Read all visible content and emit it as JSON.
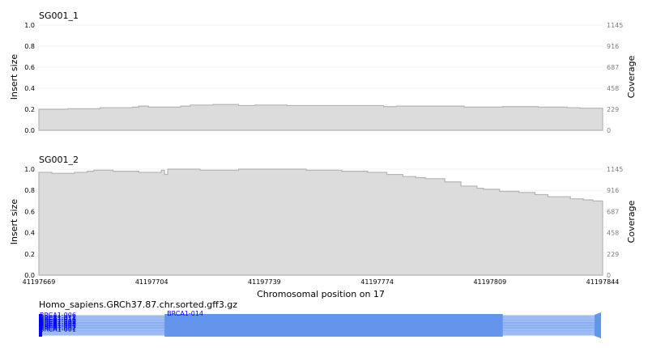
{
  "chart_data": [
    {
      "type": "area",
      "title": "SG001_1",
      "ylabel": "Insert size",
      "y2label": "Coverage",
      "ylim": [
        0,
        1
      ],
      "yticks": [
        "0.0",
        "0.2",
        "0.4",
        "0.6",
        "0.8",
        "1.0"
      ],
      "y2ticks": [
        "0",
        "229",
        "458",
        "687",
        "916",
        "1145"
      ],
      "xlim": [
        41197669,
        41197844
      ],
      "x": [
        41197669,
        41197678,
        41197688,
        41197698,
        41197700,
        41197703,
        41197713,
        41197716,
        41197723,
        41197731,
        41197736,
        41197743,
        41197746,
        41197753,
        41197763,
        41197776,
        41197780,
        41197792,
        41197801,
        41197813,
        41197824,
        41197833,
        41197837,
        41197844
      ],
      "values": [
        0.2,
        0.205,
        0.215,
        0.22,
        0.23,
        0.22,
        0.23,
        0.24,
        0.245,
        0.235,
        0.24,
        0.24,
        0.235,
        0.235,
        0.235,
        0.225,
        0.23,
        0.23,
        0.22,
        0.225,
        0.22,
        0.215,
        0.21,
        0.2
      ],
      "fill": "#dcdcdc",
      "line": "#b4b4b4"
    },
    {
      "type": "area",
      "title": "SG001_2",
      "ylabel": "Insert size",
      "y2label": "Coverage",
      "ylim": [
        0,
        1
      ],
      "yticks": [
        "0.0",
        "0.2",
        "0.4",
        "0.6",
        "0.8",
        "1.0"
      ],
      "y2ticks": [
        "0",
        "229",
        "458",
        "687",
        "916",
        "1145"
      ],
      "xlim": [
        41197669,
        41197844
      ],
      "xlabel": "Chromosomal position on 17",
      "xticks": [
        "41197669",
        "41197704",
        "41197739",
        "41197774",
        "41197809",
        "41197844"
      ],
      "x": [
        41197669,
        41197673,
        41197680,
        41197684,
        41197686,
        41197692,
        41197700,
        41197707,
        41197708,
        41197709,
        41197719,
        41197731,
        41197740,
        41197752,
        41197763,
        41197771,
        41197777,
        41197782,
        41197786,
        41197789,
        41197795,
        41197800,
        41197805,
        41197807,
        41197812,
        41197818,
        41197823,
        41197827,
        41197834,
        41197838,
        41197841,
        41197844
      ],
      "values": [
        0.97,
        0.96,
        0.97,
        0.98,
        0.99,
        0.98,
        0.97,
        0.99,
        0.95,
        1.0,
        0.99,
        1.0,
        1.0,
        0.99,
        0.98,
        0.97,
        0.95,
        0.93,
        0.92,
        0.91,
        0.88,
        0.84,
        0.82,
        0.81,
        0.79,
        0.78,
        0.76,
        0.74,
        0.72,
        0.71,
        0.7,
        0.69
      ],
      "fill": "#dcdcdc",
      "line": "#b4b4b4"
    }
  ],
  "annotation_track": {
    "title": "Homo_sapiens.GRCh37.87.chr.sorted.gff3.gz",
    "feature_color": "#6495ed",
    "label_color": "#0000ff",
    "labels": [
      "BRCA1-006",
      "BRCA1-014",
      "BRCA1-012",
      "BRCA1-011",
      "BRCA1-010",
      "BRCA1-009",
      "BRCA1-008",
      "BRCA1-005",
      "BRCA1-004",
      "BRCA1-003",
      "BRCA1-002",
      "BRCA1-001"
    ],
    "exon_start": 41197708,
    "exon_end": 41197813
  }
}
